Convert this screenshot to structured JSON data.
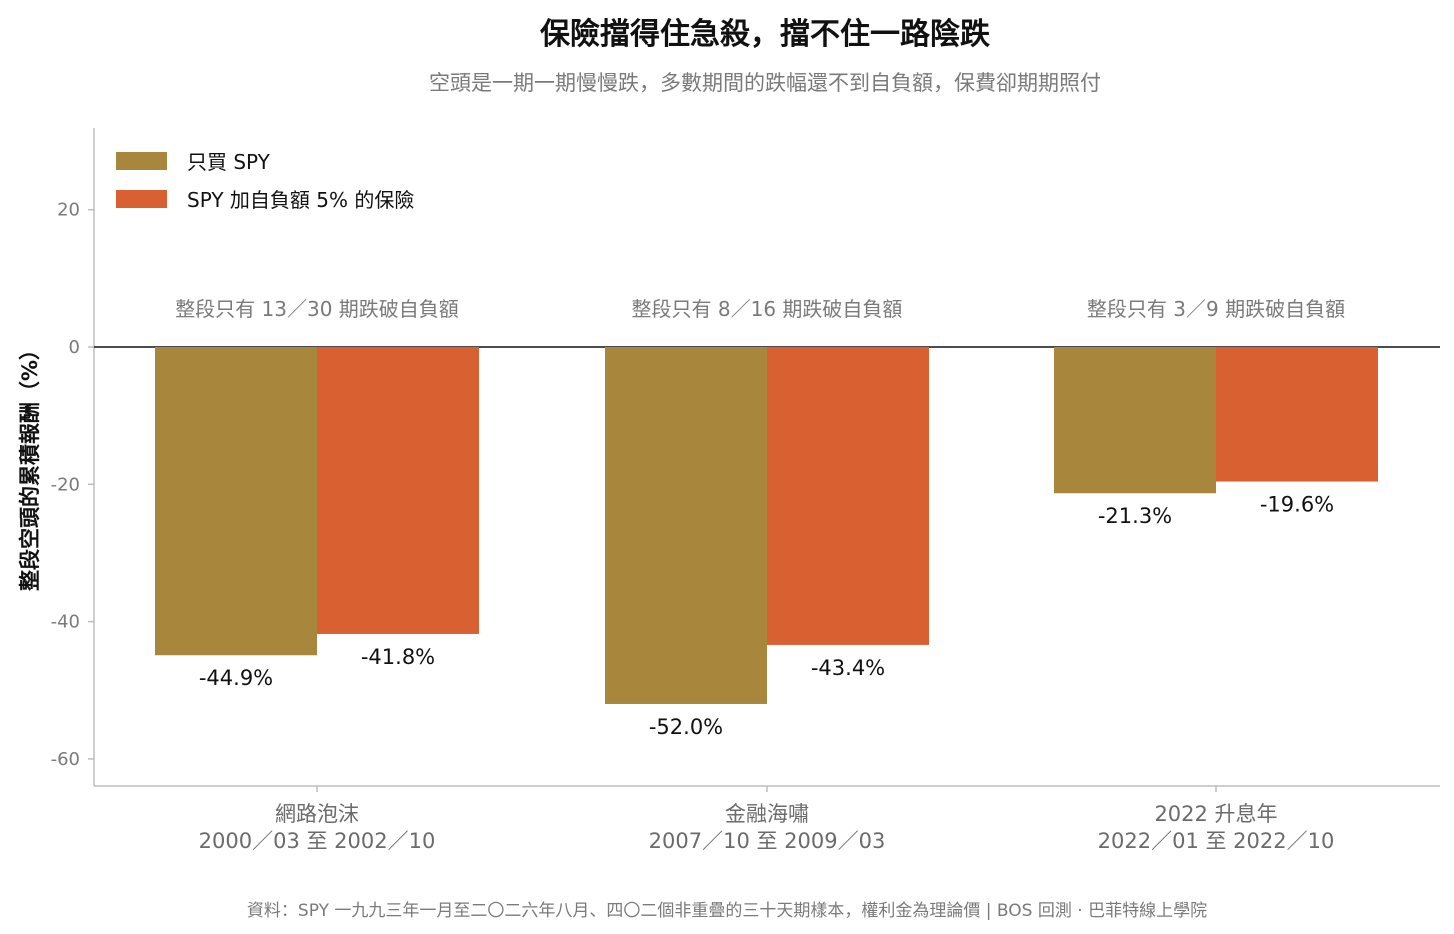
{
  "chart_data": {
    "type": "bar",
    "title": "保險擋得住急殺，擋不住一路陰跌",
    "subtitle": "空頭是一期一期慢慢跌，多數期間的跌幅還不到自負額，保費卻期期照付",
    "ylabel": "整段空頭的累積報酬（%）",
    "ylim": [
      -64,
      32
    ],
    "yticks": [
      20,
      0,
      -20,
      -40,
      -60
    ],
    "categories": [
      {
        "name": "網路泡沫",
        "range": "2000／03 至 2002／10"
      },
      {
        "name": "金融海嘯",
        "range": "2007／10 至 2009／03"
      },
      {
        "name": "2022 升息年",
        "range": "2022／01 至 2022／10"
      }
    ],
    "annotations": [
      "整段只有 13／30 期跌破自負額",
      "整段只有 8／16 期跌破自負額",
      "整段只有 3／9 期跌破自負額"
    ],
    "series": [
      {
        "name": "只買 SPY",
        "color": "#a8873c",
        "values": [
          -44.9,
          -52.0,
          -21.3
        ],
        "labels": [
          "-44.9%",
          "-52.0%",
          "-21.3%"
        ]
      },
      {
        "name": "SPY 加自負額 5% 的保險",
        "color": "#d96131",
        "values": [
          -41.8,
          -43.4,
          -19.6
        ],
        "labels": [
          "-41.8%",
          "-43.4%",
          "-19.6%"
        ]
      }
    ],
    "legend": "top-left",
    "grid": false,
    "source": "資料：SPY 一九九三年一月至二〇二六年八月、四〇二個非重疊的三十天期樣本，權利金為理論價 | BOS 回測 ·  巴菲特線上學院"
  }
}
